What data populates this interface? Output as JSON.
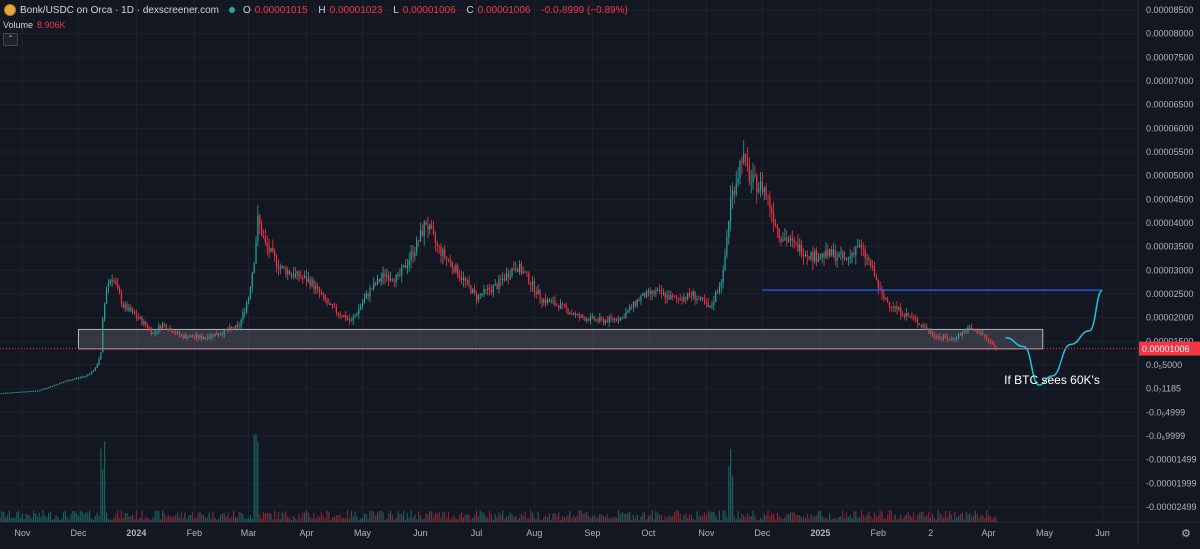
{
  "header": {
    "pair": "Bonk/USDC on Orca · 1D · dexscreener.com",
    "ohlc": [
      {
        "k": "O",
        "v": "0.00001015"
      },
      {
        "k": "H",
        "v": "0.00001023"
      },
      {
        "k": "L",
        "v": "0.00001006"
      },
      {
        "k": "C",
        "v": "0.00001006"
      }
    ],
    "change": "-0.0₇8999 (−0.89%)",
    "volume_label": "Volume",
    "volume_value": "8.906K",
    "collapse_icon": "⌃"
  },
  "colors": {
    "background": "#131722",
    "up": "#26a69a",
    "down": "#f23645",
    "grid": "#1e222d",
    "axis_text": "#b2b5be",
    "hline": "#2962ff",
    "projection": "#22c3d6",
    "zone_fill": "#5d606b",
    "zone_border": "#b2b5be"
  },
  "icons": {
    "settings": "gear-icon",
    "coin": "bonk-coin-icon",
    "status": "live-dot-icon"
  },
  "chart_data": {
    "type": "candlestick",
    "title": "Bonk/USDC on Orca · 1D · dexscreener.com",
    "y_axis_labels": [
      "0.00008500",
      "0.00008000",
      "0.00007500",
      "0.00007000",
      "0.00006500",
      "0.00006000",
      "0.00005500",
      "0.00005000",
      "0.00004500",
      "0.00004000",
      "0.00003500",
      "0.00003000",
      "0.00002500",
      "0.00002000",
      "0.00001500",
      "0.0₅5000",
      "0.0₇1185",
      "-0.0₅4999",
      "-0.0₅9999",
      "-0.00001499",
      "-0.00001999",
      "-0.00002499"
    ],
    "last_price_label": "0.00001006",
    "x_axis_labels": [
      "Nov",
      "Dec",
      "2024",
      "Feb",
      "Mar",
      "Apr",
      "May",
      "Jun",
      "Jul",
      "Aug",
      "Sep",
      "Oct",
      "Nov",
      "Dec",
      "2025",
      "Feb",
      "2",
      "Apr",
      "May",
      "Jun"
    ],
    "bold_x_labels": [
      "2024",
      "2025"
    ],
    "ylim": [
      -2.5e-05,
      8.5e-05
    ],
    "x_start": "2023-10-20",
    "x_end": "2025-06-20",
    "price_points": [
      [
        "2023-10-20",
        2e-07
      ],
      [
        "2023-11-10",
        8e-07
      ],
      [
        "2023-11-25",
        3e-06
      ],
      [
        "2023-12-05",
        4e-06
      ],
      [
        "2023-12-10",
        5.6e-06
      ],
      [
        "2023-12-13",
        9e-06
      ],
      [
        "2023-12-14",
        1.6e-05
      ],
      [
        "2023-12-16",
        2.4e-05
      ],
      [
        "2023-12-19",
        2.6e-05
      ],
      [
        "2023-12-25",
        1.95e-05
      ],
      [
        "2024-01-03",
        1.65e-05
      ],
      [
        "2024-01-10",
        1.35e-05
      ],
      [
        "2024-01-15",
        1.55e-05
      ],
      [
        "2024-01-25",
        1.28e-05
      ],
      [
        "2024-02-05",
        1.25e-05
      ],
      [
        "2024-02-15",
        1.35e-05
      ],
      [
        "2024-02-25",
        1.5e-05
      ],
      [
        "2024-03-01",
        2.15e-05
      ],
      [
        "2024-03-04",
        3e-05
      ],
      [
        "2024-03-06",
        3.85e-05
      ],
      [
        "2024-03-10",
        3.3e-05
      ],
      [
        "2024-03-18",
        2.8e-05
      ],
      [
        "2024-03-25",
        2.65e-05
      ],
      [
        "2024-04-03",
        2.5e-05
      ],
      [
        "2024-04-13",
        1.95e-05
      ],
      [
        "2024-04-25",
        1.6e-05
      ],
      [
        "2024-05-05",
        2.3e-05
      ],
      [
        "2024-05-13",
        2.65e-05
      ],
      [
        "2024-05-20",
        2.55e-05
      ],
      [
        "2024-05-30",
        3.3e-05
      ],
      [
        "2024-06-04",
        3.8e-05
      ],
      [
        "2024-06-10",
        3.25e-05
      ],
      [
        "2024-06-20",
        2.75e-05
      ],
      [
        "2024-07-01",
        2.15e-05
      ],
      [
        "2024-07-12",
        2.4e-05
      ],
      [
        "2024-07-22",
        2.85e-05
      ],
      [
        "2024-07-27",
        2.65e-05
      ],
      [
        "2024-08-05",
        2.1e-05
      ],
      [
        "2024-08-15",
        1.95e-05
      ],
      [
        "2024-08-25",
        1.7e-05
      ],
      [
        "2024-09-07",
        1.62e-05
      ],
      [
        "2024-09-17",
        1.7e-05
      ],
      [
        "2024-09-27",
        2.15e-05
      ],
      [
        "2024-10-05",
        2.25e-05
      ],
      [
        "2024-10-15",
        2.1e-05
      ],
      [
        "2024-10-25",
        2.2e-05
      ],
      [
        "2024-11-03",
        1.88e-05
      ],
      [
        "2024-11-10",
        2.65e-05
      ],
      [
        "2024-11-14",
        4.3e-05
      ],
      [
        "2024-11-18",
        4.9e-05
      ],
      [
        "2024-11-20",
        5.3e-05
      ],
      [
        "2024-11-25",
        4.7e-05
      ],
      [
        "2024-12-02",
        4.55e-05
      ],
      [
        "2024-12-10",
        3.55e-05
      ],
      [
        "2024-12-18",
        3.3e-05
      ],
      [
        "2024-12-28",
        3.05e-05
      ],
      [
        "2025-01-08",
        3.1e-05
      ],
      [
        "2025-01-15",
        2.95e-05
      ],
      [
        "2025-01-21",
        3.3e-05
      ],
      [
        "2025-01-28",
        2.85e-05
      ],
      [
        "2025-02-03",
        2.15e-05
      ],
      [
        "2025-02-12",
        1.85e-05
      ],
      [
        "2025-02-22",
        1.6e-05
      ],
      [
        "2025-03-03",
        1.3e-05
      ],
      [
        "2025-03-12",
        1.2e-05
      ],
      [
        "2025-03-22",
        1.45e-05
      ],
      [
        "2025-03-28",
        1.35e-05
      ],
      [
        "2025-04-05",
        1.01e-05
      ]
    ],
    "support_zone": {
      "from": 1e-05,
      "to": 1.43e-05,
      "x_start": "2023-12-01",
      "x_end": "2025-04-30"
    },
    "resistance_line": {
      "price": 2.3e-05,
      "x_start": "2024-12-01",
      "x_end": "2025-05-31"
    },
    "projection": [
      [
        "2025-04-10",
        1.25e-05
      ],
      [
        "2025-04-20",
        1.05e-05
      ],
      [
        "2025-04-28",
        2e-06
      ],
      [
        "2025-05-05",
        4e-06
      ],
      [
        "2025-05-15",
        1.1e-05
      ],
      [
        "2025-05-25",
        1.4e-05
      ],
      [
        "2025-06-01",
        2.3e-05
      ]
    ],
    "annotation": "If BTC sees 60K's",
    "volume": {
      "baseline_note": "",
      "spike_dates": [
        "2023-12-14",
        "2024-03-05",
        "2024-11-14"
      ]
    }
  }
}
